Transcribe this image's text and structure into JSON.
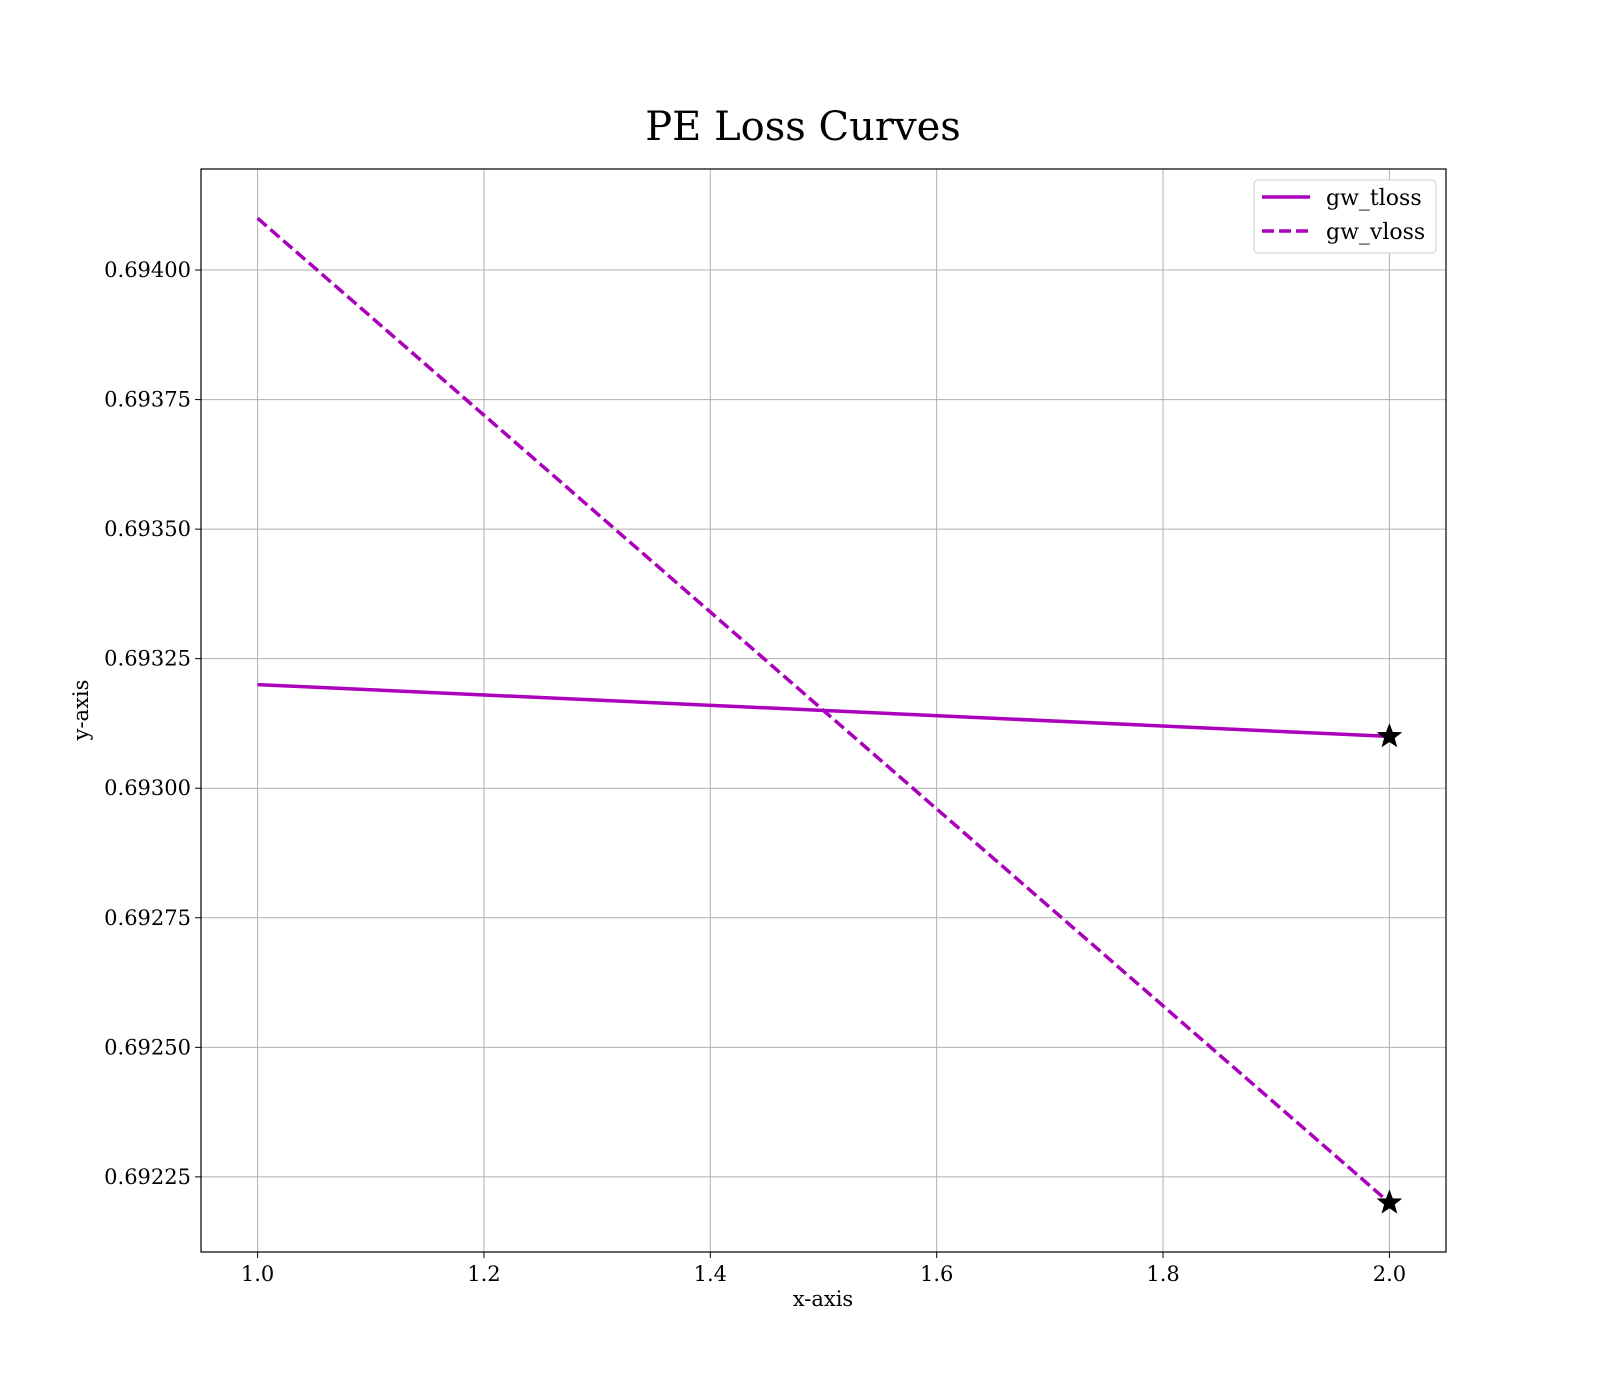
{
  "chart_data": {
    "type": "line",
    "title": "PE Loss Curves",
    "xlabel": "x-axis",
    "ylabel": "y-axis",
    "xlim": [
      0.95,
      2.05
    ],
    "ylim": [
      0.692105,
      0.694195
    ],
    "xticks": [
      1.0,
      1.2,
      1.4,
      1.6,
      1.8,
      2.0
    ],
    "xtick_labels": [
      "1.0",
      "1.2",
      "1.4",
      "1.6",
      "1.8",
      "2.0"
    ],
    "yticks": [
      0.69225,
      0.6925,
      0.69275,
      0.693,
      0.69325,
      0.6935,
      0.69375,
      0.694
    ],
    "ytick_labels": [
      "0.69225",
      "0.69250",
      "0.69275",
      "0.69300",
      "0.69325",
      "0.69350",
      "0.69375",
      "0.69400"
    ],
    "grid": true,
    "legend_position": "top-right",
    "series": [
      {
        "name": "gw_tloss",
        "x": [
          1.0,
          2.0
        ],
        "y": [
          0.6932,
          0.6931
        ],
        "color": "#aa00bb",
        "style": "solid",
        "end_marker": "star"
      },
      {
        "name": "gw_vloss",
        "x": [
          1.0,
          2.0
        ],
        "y": [
          0.6941,
          0.6922
        ],
        "color": "#aa00bb",
        "style": "dashed",
        "end_marker": "star"
      }
    ]
  }
}
